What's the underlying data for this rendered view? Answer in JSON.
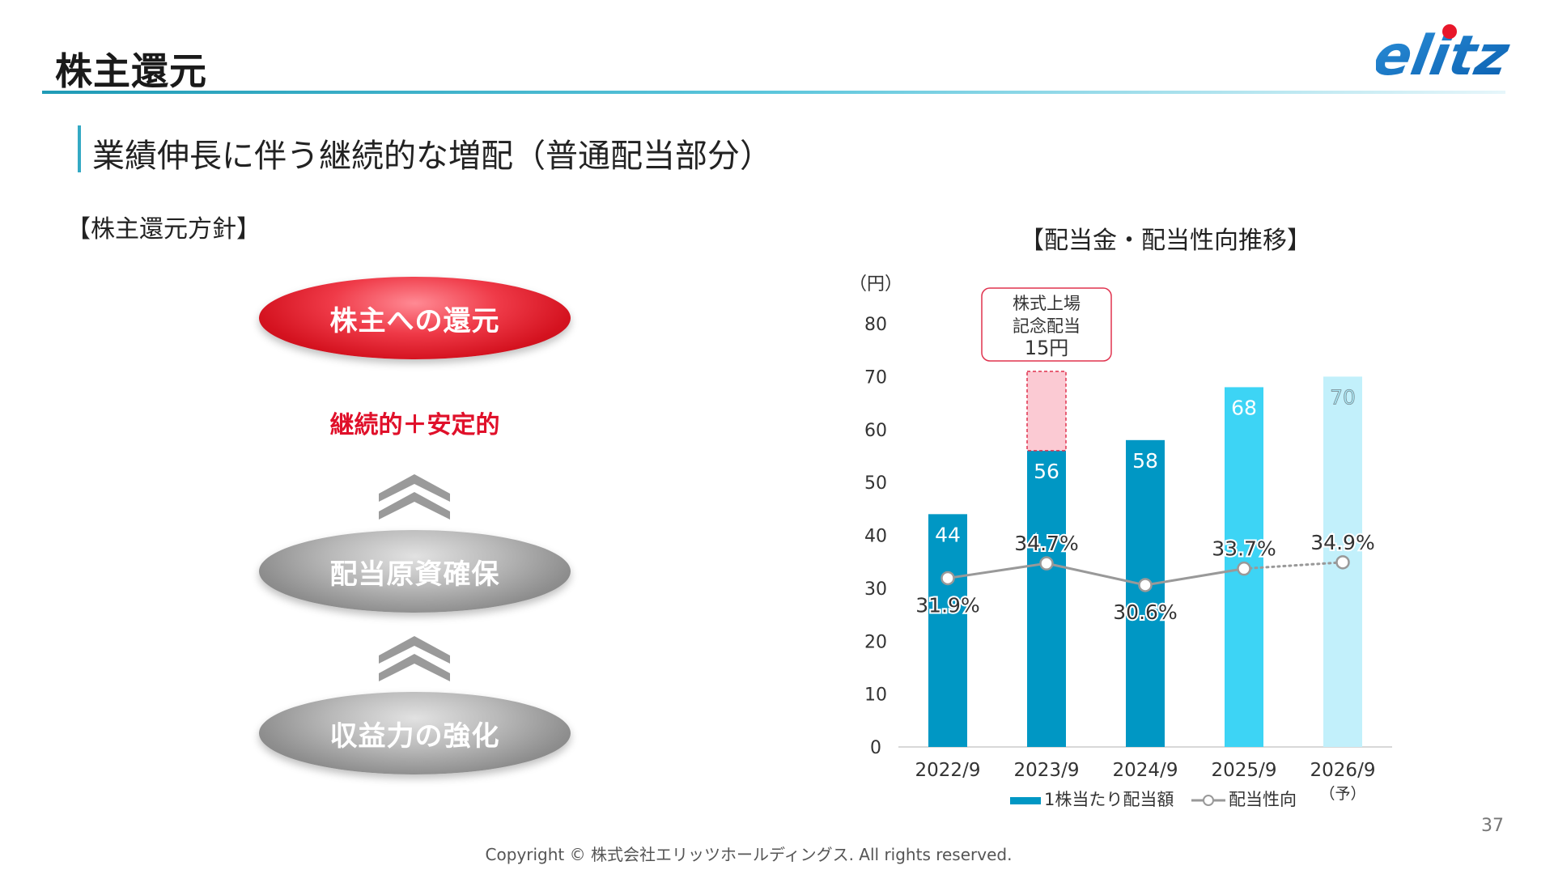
{
  "header": {
    "title": "株主還元",
    "logo_text": "elitz"
  },
  "subtitle": "業績伸長に伴う継続的な増配（普通配当部分）",
  "policy": {
    "label": "【株主還元方針】",
    "top_pill": "株主への還元",
    "stable_text": "継続的＋安定的",
    "middle_pill": "配当原資確保",
    "bottom_pill": "収益力の強化"
  },
  "chart_title": "【配当金・配当性向推移】",
  "chart_data": {
    "type": "bar",
    "unit_label": "（円）",
    "categories": [
      "2022/9",
      "2023/9",
      "2024/9",
      "2025/9",
      "2026/9"
    ],
    "forecast_note": "（予）",
    "ylim": [
      0,
      80
    ],
    "yticks": [
      0,
      10,
      20,
      30,
      40,
      50,
      60,
      70,
      80
    ],
    "series": [
      {
        "name": "1株当たり配当額",
        "values": [
          44,
          56,
          58,
          68,
          70
        ],
        "labels": [
          "44",
          "56",
          "58",
          "68",
          "70"
        ],
        "colors": [
          "#0097c4",
          "#0097c4",
          "#0097c4",
          "#3dd4f5",
          "#c2f0fb"
        ]
      },
      {
        "name": "配当性向",
        "values": [
          31.9,
          34.7,
          30.6,
          33.7,
          34.9
        ],
        "labels": [
          "31.9%",
          "34.7%",
          "30.6%",
          "33.7%",
          "34.9%"
        ],
        "color": "#999999"
      }
    ],
    "special_dividend": {
      "category": "2023/9",
      "value": 15,
      "base": 56,
      "annotation_lines": [
        "株式上場",
        "記念配当",
        "15円"
      ],
      "fill_color": "#fbcad3",
      "border_color": "#e0334f"
    }
  },
  "footer": {
    "copyright": "Copyright © 株式会社エリッツホールディングス. All rights reserved.",
    "page_number": "37"
  }
}
